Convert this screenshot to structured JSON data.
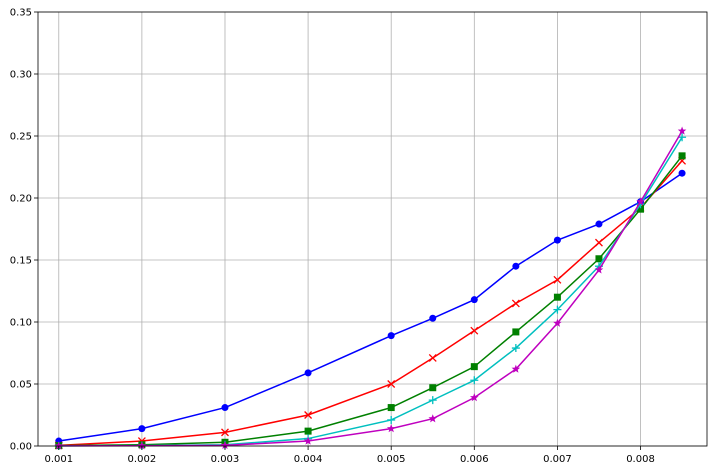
{
  "chart_data": {
    "type": "line",
    "title": "",
    "xlabel": "",
    "ylabel": "",
    "xlim": [
      0.00075,
      0.0088
    ],
    "ylim": [
      0,
      0.35
    ],
    "grid": true,
    "x_ticks": [
      "0.001",
      "0.002",
      "0.003",
      "0.004",
      "0.005",
      "0.006",
      "0.007",
      "0.008"
    ],
    "y_ticks": [
      "0.00",
      "0.05",
      "0.10",
      "0.15",
      "0.20",
      "0.25",
      "0.30",
      "0.35"
    ],
    "x": [
      0.001,
      0.002,
      0.003,
      0.004,
      0.005,
      0.0055,
      0.006,
      0.0065,
      0.007,
      0.0075,
      0.008,
      0.0085
    ],
    "series": [
      {
        "color": "#0000ff",
        "marker": "circle",
        "values": [
          0.004,
          0.014,
          0.031,
          0.059,
          0.089,
          0.103,
          0.118,
          0.145,
          0.166,
          0.179,
          0.197,
          0.22
        ]
      },
      {
        "color": "#ff0000",
        "marker": "x",
        "values": [
          0.0005,
          0.004,
          0.011,
          0.025,
          0.05,
          0.071,
          0.093,
          0.115,
          0.134,
          0.164,
          0.192,
          0.23
        ]
      },
      {
        "color": "#008000",
        "marker": "square",
        "values": [
          0.0003,
          0.001,
          0.003,
          0.012,
          0.031,
          0.047,
          0.064,
          0.092,
          0.12,
          0.151,
          0.191,
          0.234
        ]
      },
      {
        "color": "#00bfbf",
        "marker": "plus",
        "values": [
          0.0001,
          0.0003,
          0.001,
          0.006,
          0.021,
          0.037,
          0.053,
          0.079,
          0.11,
          0.145,
          0.195,
          0.249
        ]
      },
      {
        "color": "#bf00bf",
        "marker": "star",
        "values": [
          0.0001,
          0.0002,
          0.0005,
          0.004,
          0.014,
          0.022,
          0.039,
          0.062,
          0.099,
          0.142,
          0.197,
          0.254
        ]
      }
    ]
  }
}
